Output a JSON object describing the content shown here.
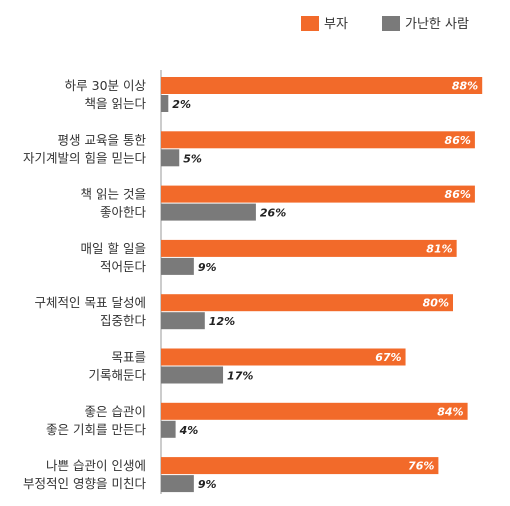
{
  "chart_data": {
    "type": "bar",
    "orientation": "horizontal",
    "categories": [
      [
        "하루 30분 이상",
        "책을 읽는다"
      ],
      [
        "평생 교육을 통한",
        "자기계발의 힘을 믿는다"
      ],
      [
        "책 읽는 것을",
        "좋아한다"
      ],
      [
        "매일 할 일을",
        "적어둔다"
      ],
      [
        "구체적인 목표 달성에",
        "집중한다"
      ],
      [
        "목표를",
        "기록해둔다"
      ],
      [
        "좋은 습관이",
        "좋은 기회를 만든다"
      ],
      [
        "나쁜 습관이 인생에",
        "부정적인 영향을 미친다"
      ]
    ],
    "series": [
      {
        "name": "부자",
        "values": [
          88,
          86,
          86,
          81,
          80,
          67,
          84,
          76
        ],
        "labels": [
          "88%",
          "86%",
          "86%",
          "81%",
          "80%",
          "67%",
          "84%",
          "76%"
        ],
        "color": "#f26a2a"
      },
      {
        "name": "가난한 사람",
        "values": [
          2,
          5,
          26,
          9,
          12,
          17,
          4,
          9
        ],
        "labels": [
          "2%",
          "5%",
          "26%",
          "9%",
          "12%",
          "17%",
          "4%",
          "9%"
        ],
        "color": "#7a7a7a"
      }
    ],
    "xlim": [
      0,
      100
    ],
    "grid": false,
    "legend_position": "top-right"
  }
}
